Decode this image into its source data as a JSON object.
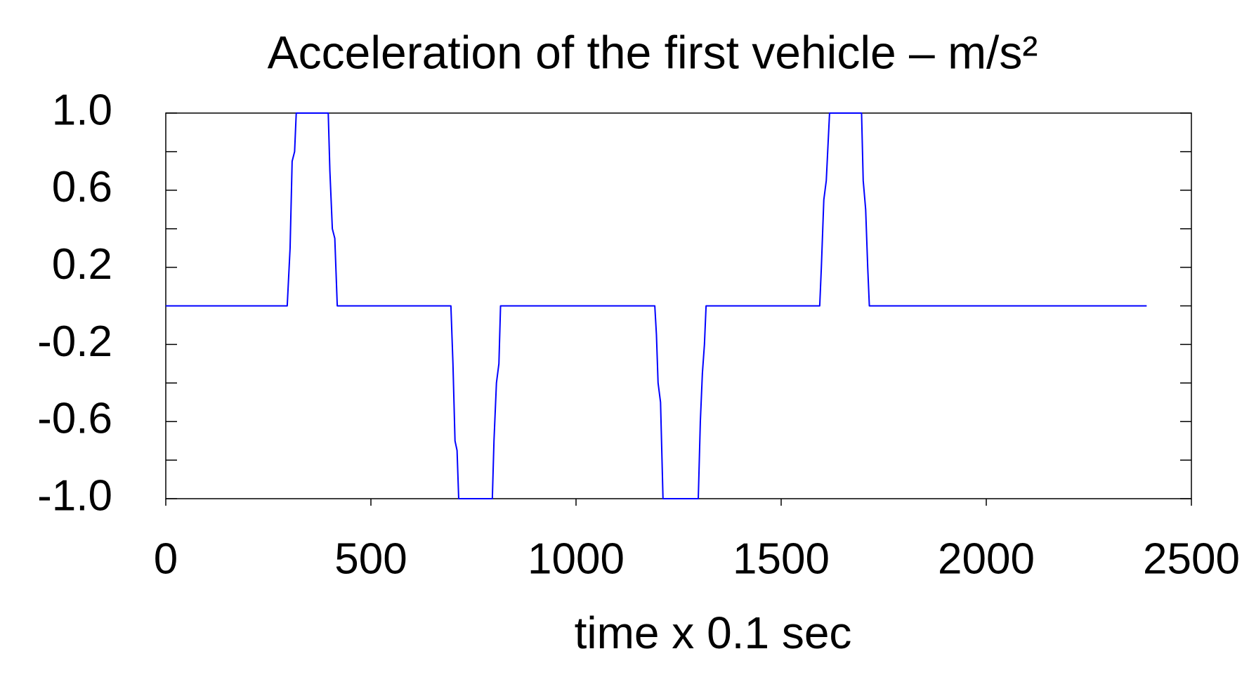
{
  "chart_data": {
    "type": "line",
    "title": "Acceleration of the first vehicle – m/s²",
    "x_label": "time x 0.1 sec",
    "x": [
      0,
      296,
      303,
      308,
      314,
      318,
      396,
      400,
      406,
      412,
      418,
      695,
      700,
      705,
      710,
      714,
      796,
      800,
      806,
      812,
      816,
      1192,
      1196,
      1200,
      1206,
      1212,
      1298,
      1303,
      1308,
      1313,
      1317,
      1594,
      1598,
      1604,
      1610,
      1618,
      1696,
      1700,
      1706,
      1711,
      1715,
      2391
    ],
    "series": [
      {
        "color": "#0000ff",
        "values": [
          0,
          0,
          0.3,
          0.75,
          0.8,
          1,
          1,
          0.7,
          0.4,
          0.35,
          0,
          0,
          -0.3,
          -0.7,
          -0.75,
          -1,
          -1,
          -0.7,
          -0.4,
          -0.3,
          0,
          0,
          -0.15,
          -0.4,
          -0.5,
          -1,
          -1,
          -0.6,
          -0.35,
          -0.2,
          0,
          0,
          0.2,
          0.55,
          0.65,
          1,
          1,
          0.65,
          0.5,
          0.2,
          0,
          0
        ]
      }
    ],
    "xlim": [
      0,
      2500
    ],
    "xticks": [
      0,
      500,
      1000,
      1500,
      2000,
      2500
    ],
    "ylim": [
      -1,
      1
    ],
    "yticks": [
      {
        "value": 1,
        "label": "1.0"
      },
      0.6,
      0.2,
      -0.2,
      -0.6,
      {
        "value": -1,
        "label": "-1.0"
      }
    ],
    "yminor_ticks": [
      0.8,
      0.4,
      0,
      -0.4,
      -0.8
    ]
  }
}
